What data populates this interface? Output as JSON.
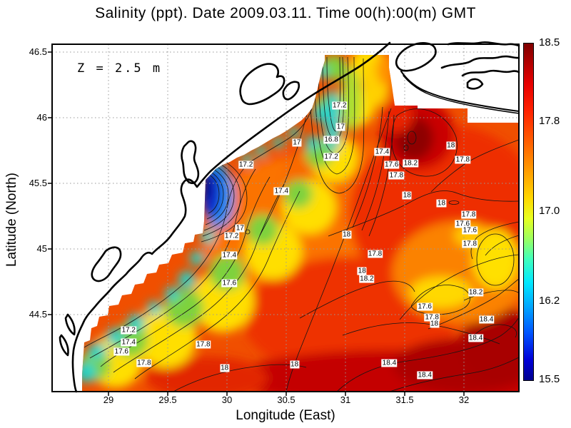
{
  "title": "Salinity (ppt). Date 2009.03.11. Time 00(h):00(m) GMT",
  "annotation": "Z = 2.5 m",
  "chart_data": {
    "type": "contour",
    "variable": "Salinity (ppt)",
    "date": "2009.03.11",
    "time": "00(h):00(m) GMT",
    "depth_label": "Z = 2.5 m",
    "xlabel": "Longitude (East)",
    "ylabel": "Latitude (North)",
    "xlim": [
      28.52,
      32.46
    ],
    "ylim": [
      43.91,
      46.56
    ],
    "grid": "dotted",
    "xticks": [
      "29",
      "29.5",
      "30",
      "30.5",
      "31",
      "31.5",
      "32"
    ],
    "yticks": [
      "46.5",
      "46",
      "45.5",
      "45",
      "44.5"
    ],
    "colorbar": {
      "min": 15.5,
      "max": 18.5,
      "ticks": [
        "18.5",
        "17.8",
        "17.0",
        "16.2",
        "15.5"
      ],
      "colormap": "jet"
    },
    "contour_interval": 0.2,
    "field_notes": [
      "low-salinity river plume (~15.5 ppt) near coast at 29.85E 45.35N",
      "fresh coastal band 16.2-17.2 ppt along NW shelf coast",
      "high-salinity core >18.2 ppt centered near 31.55E 45.75N",
      "salinity >18.4 ppt in open sea, south-east corner",
      "land areas blank; white no-data gap between coastline and model grid"
    ],
    "contour_labels": [
      {
        "v": "17.2",
        "lon": 30.16,
        "lat": 45.64
      },
      {
        "v": "17",
        "lon": 30.11,
        "lat": 45.16
      },
      {
        "v": "17.2",
        "lon": 30.04,
        "lat": 45.1
      },
      {
        "v": "17.4",
        "lon": 30.02,
        "lat": 44.95
      },
      {
        "v": "17.6",
        "lon": 30.02,
        "lat": 44.74
      },
      {
        "v": "17.4",
        "lon": 30.46,
        "lat": 45.44
      },
      {
        "v": "17.2",
        "lon": 30.95,
        "lat": 46.09
      },
      {
        "v": "17",
        "lon": 30.96,
        "lat": 45.93
      },
      {
        "v": "16.8",
        "lon": 30.88,
        "lat": 45.83
      },
      {
        "v": "17",
        "lon": 30.59,
        "lat": 45.81
      },
      {
        "v": "17.2",
        "lon": 30.88,
        "lat": 45.7
      },
      {
        "v": "17.4",
        "lon": 31.31,
        "lat": 45.74
      },
      {
        "v": "17.6",
        "lon": 31.39,
        "lat": 45.64
      },
      {
        "v": "17.8",
        "lon": 31.43,
        "lat": 45.56
      },
      {
        "v": "18.2",
        "lon": 31.55,
        "lat": 45.65
      },
      {
        "v": "18",
        "lon": 31.89,
        "lat": 45.79
      },
      {
        "v": "17.8",
        "lon": 31.99,
        "lat": 45.68
      },
      {
        "v": "18",
        "lon": 31.52,
        "lat": 45.41
      },
      {
        "v": "18",
        "lon": 31.81,
        "lat": 45.35
      },
      {
        "v": "17.8",
        "lon": 32.04,
        "lat": 45.26
      },
      {
        "v": "17.6",
        "lon": 31.99,
        "lat": 45.19
      },
      {
        "v": "17.6",
        "lon": 32.05,
        "lat": 45.14
      },
      {
        "v": "17.8",
        "lon": 32.05,
        "lat": 45.04
      },
      {
        "v": "18.2",
        "lon": 32.1,
        "lat": 44.67
      },
      {
        "v": "18.4",
        "lon": 32.19,
        "lat": 44.46
      },
      {
        "v": "18.4",
        "lon": 32.1,
        "lat": 44.32
      },
      {
        "v": "18.2",
        "lon": 31.18,
        "lat": 44.77
      },
      {
        "v": "18",
        "lon": 31.14,
        "lat": 44.83
      },
      {
        "v": "17.8",
        "lon": 31.25,
        "lat": 44.96
      },
      {
        "v": "18",
        "lon": 31.01,
        "lat": 45.11
      },
      {
        "v": "17.6",
        "lon": 31.67,
        "lat": 44.56
      },
      {
        "v": "17.8",
        "lon": 31.73,
        "lat": 44.48
      },
      {
        "v": "18",
        "lon": 31.75,
        "lat": 44.43
      },
      {
        "v": "18.4",
        "lon": 31.37,
        "lat": 44.13
      },
      {
        "v": "18.4",
        "lon": 31.67,
        "lat": 44.04
      },
      {
        "v": "18",
        "lon": 30.57,
        "lat": 44.12
      },
      {
        "v": "17.8",
        "lon": 29.8,
        "lat": 44.27
      },
      {
        "v": "18",
        "lon": 29.98,
        "lat": 44.09
      },
      {
        "v": "17.8",
        "lon": 29.3,
        "lat": 44.13
      },
      {
        "v": "17.6",
        "lon": 29.11,
        "lat": 44.22
      },
      {
        "v": "17.4",
        "lon": 29.17,
        "lat": 44.29
      },
      {
        "v": "17.2",
        "lon": 29.17,
        "lat": 44.38
      }
    ]
  }
}
